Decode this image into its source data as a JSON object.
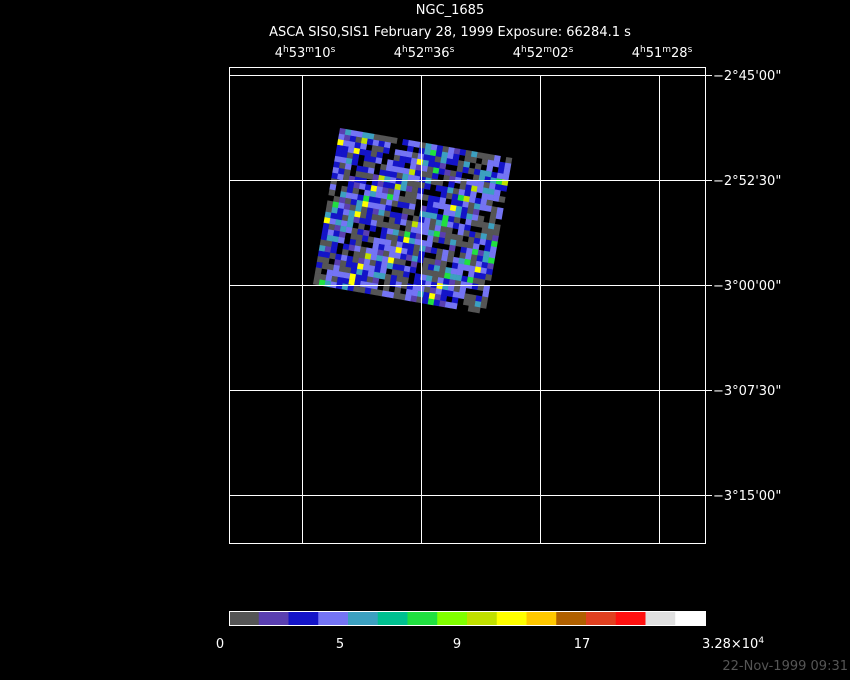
{
  "title": "NGC_1685",
  "subtitle": "ASCA SIS0,SIS1 February 28, 1999 Exposure: 66284.1 s",
  "ra_labels": [
    [
      "4",
      "h",
      "53",
      "m",
      "10",
      "s"
    ],
    [
      "4",
      "h",
      "52",
      "m",
      "36",
      "s"
    ],
    [
      "4",
      "h",
      "52",
      "m",
      "02",
      "s"
    ],
    [
      "4",
      "h",
      "51",
      "m",
      "28",
      "s"
    ]
  ],
  "dec_labels": [
    "−2°45'00\"",
    "−2°52'30\"",
    "−3°00'00\"",
    "−3°07'30\"",
    "−3°15'00\""
  ],
  "colorbar": {
    "colors": [
      "#555555",
      "#5a3fb0",
      "#1414c8",
      "#7474f4",
      "#3ca0c0",
      "#00c090",
      "#20e040",
      "#80ff00",
      "#c0e000",
      "#ffff00",
      "#ffc800",
      "#b06000",
      "#e04020",
      "#ff1010",
      "#e0e0e0",
      "#ffffff"
    ],
    "labels": [
      [
        "0"
      ],
      [
        "5"
      ],
      [
        "9"
      ],
      [
        "17"
      ],
      [
        "3.28×10",
        "4"
      ]
    ]
  },
  "timestamp": "22-Nov-1999 09:31"
}
